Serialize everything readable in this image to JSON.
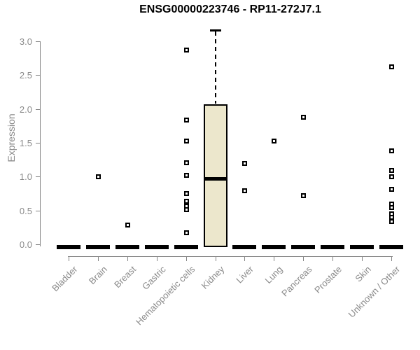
{
  "chart_data": {
    "type": "boxplot",
    "title": "ENSG00000223746 - RP11-272J7.1",
    "ylabel": "Expression",
    "xlabel": "",
    "ylim": [
      0.0,
      3.0
    ],
    "ytick_values": [
      0.0,
      0.5,
      1.0,
      1.5,
      2.0,
      2.5,
      3.0
    ],
    "ytick_labels": [
      "0.0",
      "0.5",
      "1.0",
      "1.5",
      "2.0",
      "2.5",
      "3.0"
    ],
    "grid": "off",
    "legend": "none",
    "colors": {
      "box_fill": "#ECE7CC",
      "box_stroke": "#000000",
      "zero_bar": "#000000",
      "axis": "#858585",
      "tick_label": "#8a8a8a",
      "title": "#000000",
      "background": "#ffffff"
    },
    "groups": [
      {
        "label": "Bladder",
        "box": {
          "q1": 0,
          "median": 0,
          "q3": 0
        },
        "points": []
      },
      {
        "label": "Brain",
        "box": {
          "q1": 0,
          "median": 0,
          "q3": 0
        },
        "points": [
          1.0
        ]
      },
      {
        "label": "Breast",
        "box": {
          "q1": 0,
          "median": 0,
          "q3": 0
        },
        "points": [
          0.29
        ]
      },
      {
        "label": "Gastric",
        "box": {
          "q1": 0,
          "median": 0,
          "q3": 0
        },
        "points": []
      },
      {
        "label": "Hematopoietic cells",
        "box": {
          "q1": 0,
          "median": 0,
          "q3": 0
        },
        "points": [
          2.88,
          1.84,
          1.53,
          1.21,
          1.02,
          0.76,
          0.64,
          0.57,
          0.52,
          0.18
        ]
      },
      {
        "label": "Kidney",
        "box": {
          "q1": 0.0,
          "median": 0.97,
          "q3": 2.07,
          "upper_whisker": 3.16
        },
        "points": []
      },
      {
        "label": "Liver",
        "box": {
          "q1": 0,
          "median": 0,
          "q3": 0
        },
        "points": [
          1.2,
          0.8
        ]
      },
      {
        "label": "Lung",
        "box": {
          "q1": 0,
          "median": 0,
          "q3": 0
        },
        "points": [
          1.53
        ]
      },
      {
        "label": "Pancreas",
        "box": {
          "q1": 0,
          "median": 0,
          "q3": 0
        },
        "points": [
          1.88,
          0.72
        ]
      },
      {
        "label": "Prostate",
        "box": {
          "q1": 0,
          "median": 0,
          "q3": 0
        },
        "points": []
      },
      {
        "label": "Skin",
        "box": {
          "q1": 0,
          "median": 0,
          "q3": 0
        },
        "points": []
      },
      {
        "label": "Unknown / Other",
        "box": {
          "q1": 0,
          "median": 0,
          "q3": 0
        },
        "points": [
          2.63,
          1.39,
          1.1,
          1.0,
          0.82,
          0.6,
          0.55,
          0.45,
          0.4,
          0.34
        ]
      }
    ]
  }
}
